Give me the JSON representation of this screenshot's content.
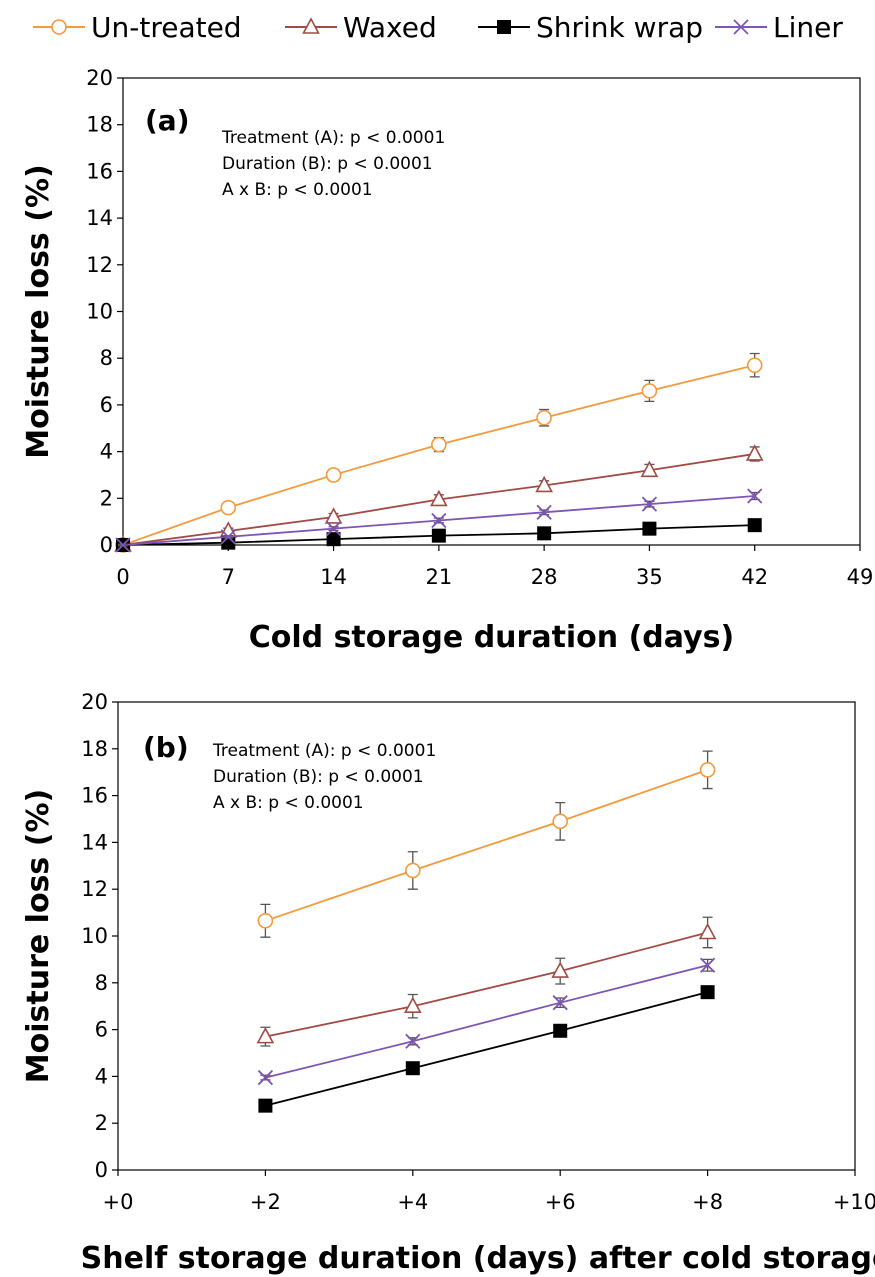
{
  "legend": [
    {
      "name": "Un-treated",
      "color": "#F39A3E",
      "marker": "circle-open"
    },
    {
      "name": "Waxed",
      "color": "#A14B44",
      "marker": "triangle-open"
    },
    {
      "name": "Shrink wrap",
      "color": "#000000",
      "marker": "square-filled"
    },
    {
      "name": "Liner",
      "color": "#7E55B4",
      "marker": "x"
    }
  ],
  "chart_data": [
    {
      "type": "line",
      "panel_label": "(a)",
      "xlabel": "Cold storage duration (days)",
      "ylabel": "Moisture loss (%)",
      "xlim": [
        0,
        49
      ],
      "ylim": [
        0,
        20
      ],
      "xticks": [
        "0",
        "7",
        "14",
        "21",
        "28",
        "35",
        "42",
        "49"
      ],
      "yticks": [
        "0",
        "2",
        "4",
        "6",
        "8",
        "10",
        "12",
        "14",
        "16",
        "18",
        "20"
      ],
      "annotations": [
        "Treatment (A): p < 0.0001",
        "Duration (B): p < 0.0001",
        "A x B: p < 0.0001"
      ],
      "x": [
        0,
        7,
        14,
        21,
        28,
        35,
        42
      ],
      "series": [
        {
          "name": "Un-treated",
          "values": [
            0,
            1.6,
            3.0,
            4.3,
            5.45,
            6.6,
            7.7
          ],
          "errors": [
            0.1,
            0.15,
            0.25,
            0.3,
            0.35,
            0.45,
            0.5
          ]
        },
        {
          "name": "Waxed",
          "values": [
            0,
            0.6,
            1.2,
            1.95,
            2.55,
            3.2,
            3.9
          ],
          "errors": [
            0.05,
            0.12,
            0.15,
            0.2,
            0.2,
            0.25,
            0.3
          ]
        },
        {
          "name": "Shrink wrap",
          "values": [
            0,
            0.1,
            0.25,
            0.4,
            0.5,
            0.7,
            0.85
          ],
          "errors": [
            0.02,
            0.05,
            0.05,
            0.05,
            0.05,
            0.05,
            0.05
          ]
        },
        {
          "name": "Liner",
          "values": [
            0,
            0.35,
            0.7,
            1.05,
            1.4,
            1.75,
            2.1
          ],
          "errors": [
            0.03,
            0.05,
            0.08,
            0.1,
            0.1,
            0.12,
            0.15
          ]
        }
      ]
    },
    {
      "type": "line",
      "panel_label": "(b)",
      "xlabel": "Shelf storage duration (days) after cold storage",
      "ylabel": "Moisture loss (%)",
      "xlim": [
        0,
        10
      ],
      "ylim": [
        0,
        20
      ],
      "xticks": [
        "+0",
        "+2",
        "+4",
        "+6",
        "+8",
        "+10"
      ],
      "yticks": [
        "0",
        "2",
        "4",
        "6",
        "8",
        "10",
        "12",
        "14",
        "16",
        "18",
        "20"
      ],
      "annotations": [
        "Treatment (A): p < 0.0001",
        "Duration (B): p < 0.0001",
        "A x B: p < 0.0001"
      ],
      "x": [
        2,
        4,
        6,
        8
      ],
      "series": [
        {
          "name": "Un-treated",
          "values": [
            10.65,
            12.8,
            14.9,
            17.1
          ],
          "errors": [
            0.7,
            0.8,
            0.8,
            0.8
          ]
        },
        {
          "name": "Waxed",
          "values": [
            5.7,
            7.0,
            8.5,
            10.15
          ],
          "errors": [
            0.4,
            0.5,
            0.55,
            0.65
          ]
        },
        {
          "name": "Shrink wrap",
          "values": [
            2.75,
            4.35,
            5.95,
            7.6
          ],
          "errors": [
            0.1,
            0.1,
            0.1,
            0.15
          ]
        },
        {
          "name": "Liner",
          "values": [
            3.95,
            5.5,
            7.15,
            8.75
          ],
          "errors": [
            0.1,
            0.15,
            0.2,
            0.25
          ]
        }
      ]
    }
  ]
}
